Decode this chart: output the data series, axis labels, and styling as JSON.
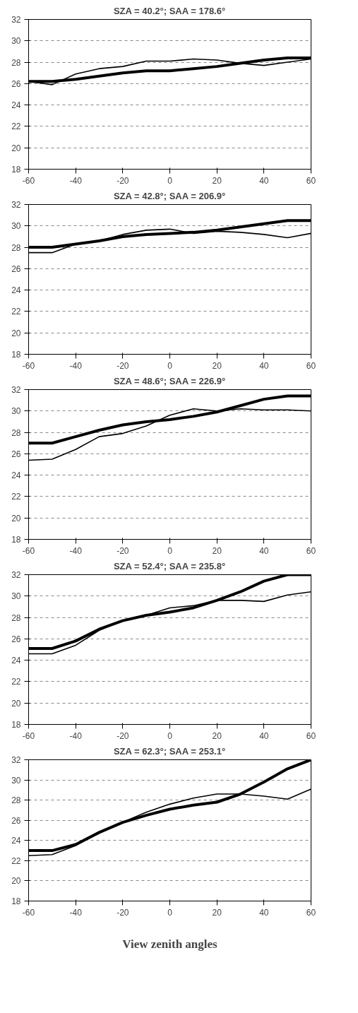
{
  "chart_data": [
    {
      "type": "line",
      "title": "SZA = 40.2°; SAA = 178.6°",
      "x": [
        -60,
        -50,
        -40,
        -30,
        -20,
        -10,
        0,
        10,
        20,
        30,
        40,
        50,
        60
      ],
      "xlim": [
        -60,
        60
      ],
      "xticks": [
        -60,
        -40,
        -20,
        0,
        20,
        40,
        60
      ],
      "ylim": [
        18,
        32
      ],
      "yticks": [
        18,
        20,
        22,
        24,
        26,
        28,
        30,
        32
      ],
      "grid": "y",
      "line_style": "solid",
      "series": [
        {
          "color": "#000000",
          "values": [
            26.2,
            26.2,
            26.4,
            26.7,
            27.0,
            27.2,
            27.2,
            27.4,
            27.6,
            27.9,
            28.2,
            28.4,
            28.4
          ]
        },
        {
          "color": "#000000",
          "values": [
            26.2,
            25.9,
            26.9,
            27.4,
            27.6,
            28.1,
            28.1,
            28.3,
            28.2,
            27.9,
            27.7,
            28.0,
            28.3
          ]
        }
      ]
    },
    {
      "type": "line",
      "title": "SZA = 42.8°; SAA = 206.9°",
      "x": [
        -60,
        -50,
        -40,
        -30,
        -20,
        -10,
        0,
        10,
        20,
        30,
        40,
        50,
        60
      ],
      "xlim": [
        -60,
        60
      ],
      "xticks": [
        -60,
        -40,
        -20,
        0,
        20,
        40,
        60
      ],
      "ylim": [
        18,
        32
      ],
      "yticks": [
        18,
        20,
        22,
        24,
        26,
        28,
        30,
        32
      ],
      "grid": "y",
      "line_style": "solid",
      "series": [
        {
          "color": "#000000",
          "values": [
            28.0,
            28.0,
            28.3,
            28.6,
            29.0,
            29.2,
            29.3,
            29.4,
            29.6,
            29.9,
            30.2,
            30.5,
            30.5
          ]
        },
        {
          "color": "#000000",
          "values": [
            27.5,
            27.5,
            28.3,
            28.6,
            29.2,
            29.6,
            29.7,
            29.3,
            29.5,
            29.4,
            29.2,
            28.9,
            29.3
          ]
        }
      ]
    },
    {
      "type": "line",
      "title": "SZA = 48.6°; SAA = 226.9°",
      "x": [
        -60,
        -50,
        -40,
        -30,
        -20,
        -10,
        0,
        10,
        20,
        30,
        40,
        50,
        60
      ],
      "xlim": [
        -60,
        60
      ],
      "xticks": [
        -60,
        -40,
        -20,
        0,
        20,
        40,
        60
      ],
      "ylim": [
        18,
        32
      ],
      "yticks": [
        18,
        20,
        22,
        24,
        26,
        28,
        30,
        32
      ],
      "grid": "y",
      "line_style": "solid",
      "series": [
        {
          "color": "#000000",
          "values": [
            27.0,
            27.0,
            27.6,
            28.2,
            28.7,
            29.0,
            29.2,
            29.5,
            29.9,
            30.5,
            31.1,
            31.4,
            31.4
          ]
        },
        {
          "color": "#000000",
          "values": [
            25.4,
            25.5,
            26.4,
            27.6,
            27.9,
            28.6,
            29.6,
            30.2,
            30.0,
            30.2,
            30.1,
            30.1,
            30.0
          ]
        }
      ]
    },
    {
      "type": "line",
      "title": "SZA = 52.4°; SAA = 235.8°",
      "x": [
        -60,
        -50,
        -40,
        -30,
        -20,
        -10,
        0,
        10,
        20,
        30,
        40,
        50,
        60
      ],
      "xlim": [
        -60,
        60
      ],
      "xticks": [
        -60,
        -40,
        -20,
        0,
        20,
        40,
        60
      ],
      "ylim": [
        18,
        32
      ],
      "yticks": [
        18,
        20,
        22,
        24,
        26,
        28,
        30,
        32
      ],
      "grid": "y",
      "line_style": "solid",
      "series": [
        {
          "color": "#000000",
          "values": [
            25.1,
            25.1,
            25.8,
            26.9,
            27.7,
            28.2,
            28.5,
            28.9,
            29.6,
            30.4,
            31.4,
            32.0,
            32.0
          ]
        },
        {
          "color": "#000000",
          "values": [
            24.6,
            24.6,
            25.4,
            26.8,
            27.7,
            28.2,
            28.9,
            29.1,
            29.6,
            29.6,
            29.5,
            30.1,
            30.4
          ]
        }
      ]
    },
    {
      "type": "line",
      "title": "SZA = 62.3°; SAA = 253.1°",
      "xlabel": "View zenith angles",
      "x": [
        -60,
        -50,
        -40,
        -30,
        -20,
        -10,
        0,
        10,
        20,
        30,
        40,
        50,
        60
      ],
      "xlim": [
        -60,
        60
      ],
      "xticks": [
        -60,
        -40,
        -20,
        0,
        20,
        40,
        60
      ],
      "ylim": [
        18,
        32
      ],
      "yticks": [
        18,
        20,
        22,
        24,
        26,
        28,
        30,
        32
      ],
      "grid": "y",
      "line_style": "solid",
      "series": [
        {
          "color": "#000000",
          "values": [
            23.0,
            23.0,
            23.6,
            24.8,
            25.8,
            26.5,
            27.1,
            27.5,
            27.8,
            28.6,
            29.8,
            31.1,
            32.0
          ]
        },
        {
          "color": "#000000",
          "values": [
            22.5,
            22.6,
            23.5,
            24.8,
            25.8,
            26.8,
            27.6,
            28.2,
            28.6,
            28.6,
            28.4,
            28.1,
            29.1
          ]
        }
      ]
    }
  ]
}
